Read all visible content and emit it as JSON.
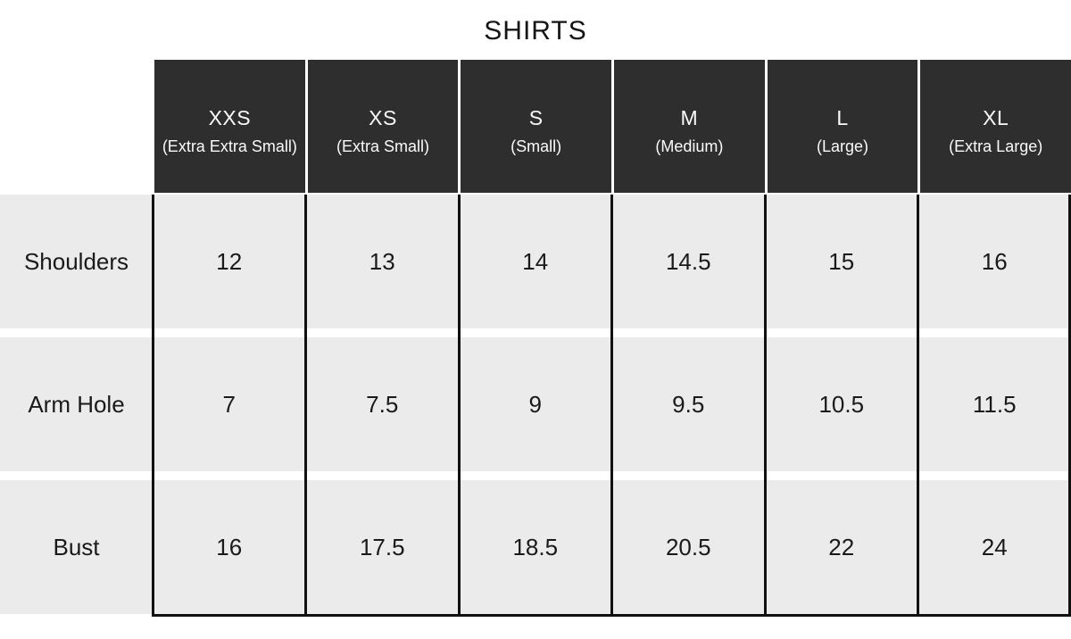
{
  "title": "SHIRTS",
  "table": {
    "columns": [
      {
        "size": "XXS",
        "full": "(Extra Extra Small)"
      },
      {
        "size": "XS",
        "full": "(Extra Small)"
      },
      {
        "size": "S",
        "full": "(Small)"
      },
      {
        "size": "M",
        "full": "(Medium)"
      },
      {
        "size": "L",
        "full": "(Large)"
      },
      {
        "size": "XL",
        "full": "(Extra Large)"
      }
    ],
    "rows": [
      {
        "label": "Shoulders",
        "values": [
          "12",
          "13",
          "14",
          "14.5",
          "15",
          "16"
        ]
      },
      {
        "label": "Arm Hole",
        "values": [
          "7",
          "7.5",
          "9",
          "9.5",
          "10.5",
          "11.5"
        ]
      },
      {
        "label": "Bust",
        "values": [
          "16",
          "17.5",
          "18.5",
          "20.5",
          "22",
          "24"
        ]
      }
    ]
  },
  "colors": {
    "header_bg": "#2e2e2e",
    "cell_bg": "#ebebeb",
    "line": "#111111",
    "header_text": "#fafafa",
    "text": "#1a1a1a"
  },
  "chart_data": {
    "type": "table",
    "title": "SHIRTS",
    "columns": [
      "XXS (Extra Extra Small)",
      "XS (Extra Small)",
      "S (Small)",
      "M (Medium)",
      "L (Large)",
      "XL (Extra Large)"
    ],
    "row_labels": [
      "Shoulders",
      "Arm Hole",
      "Bust"
    ],
    "rows": [
      [
        12,
        13,
        14,
        14.5,
        15,
        16
      ],
      [
        7,
        7.5,
        9,
        9.5,
        10.5,
        11.5
      ],
      [
        16,
        17.5,
        18.5,
        20.5,
        22,
        24
      ]
    ]
  }
}
